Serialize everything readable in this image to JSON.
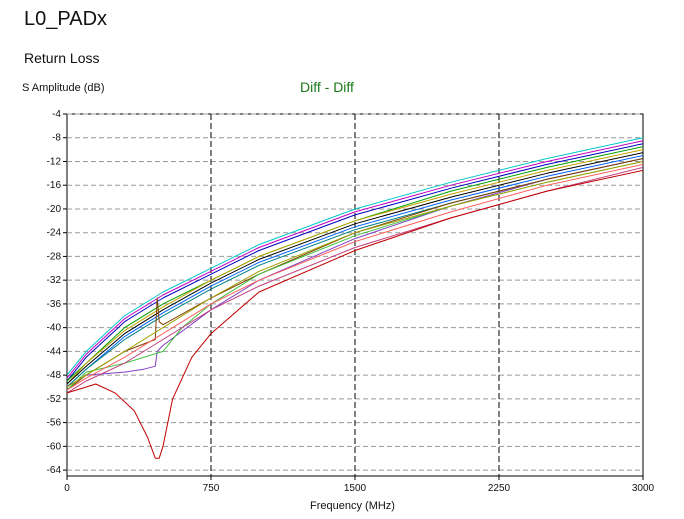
{
  "header": {
    "page_title": "L0_PADx",
    "section_title": "Return Loss"
  },
  "chart_data": {
    "type": "line",
    "title": "Diff - Diff",
    "xlabel": "Frequency (MHz)",
    "ylabel": "S Amplitude (dB)",
    "xlim": [
      0,
      3000
    ],
    "ylim": [
      -65,
      -4
    ],
    "x_ticks": [
      0,
      750,
      1500,
      2250,
      3000
    ],
    "y_ticks": [
      -4,
      -8,
      -12,
      -16,
      -20,
      -24,
      -28,
      -32,
      -36,
      -40,
      -44,
      -48,
      -52,
      -56,
      -60,
      -64
    ],
    "grid": true,
    "series": [
      {
        "color": "#00c8c8",
        "x": [
          0,
          100,
          300,
          500,
          750,
          1000,
          1500,
          2000,
          2500,
          3000
        ],
        "y": [
          -48,
          -44,
          -38,
          -34,
          -30,
          -26,
          -20,
          -15.5,
          -11.5,
          -8
        ]
      },
      {
        "color": "#c000c0",
        "x": [
          0,
          100,
          300,
          500,
          750,
          1000,
          1500,
          2000,
          2500,
          3000
        ],
        "y": [
          -48.5,
          -44.5,
          -38.5,
          -34.5,
          -30.5,
          -26.5,
          -20.5,
          -16,
          -12,
          -8.5
        ]
      },
      {
        "color": "#0000c0",
        "x": [
          0,
          100,
          300,
          500,
          750,
          1000,
          1500,
          2000,
          2500,
          3000
        ],
        "y": [
          -49,
          -45,
          -39,
          -35,
          -31,
          -27,
          -21,
          -16.5,
          -12.5,
          -9
        ]
      },
      {
        "color": "#00a000",
        "x": [
          0,
          100,
          300,
          500,
          750,
          1000,
          1500,
          2000,
          2500,
          3000
        ],
        "y": [
          -49,
          -46,
          -40,
          -36,
          -32,
          -28,
          -22,
          -17,
          -13,
          -9.5
        ]
      },
      {
        "color": "#c0a000",
        "x": [
          0,
          100,
          300,
          500,
          750,
          1000,
          1500,
          2000,
          2500,
          3000
        ],
        "y": [
          -49.5,
          -46,
          -40.5,
          -36.5,
          -32,
          -28,
          -22,
          -17.5,
          -13.5,
          -10
        ]
      },
      {
        "color": "#000000",
        "x": [
          0,
          100,
          300,
          500,
          750,
          1000,
          1500,
          2000,
          2500,
          3000
        ],
        "y": [
          -49.5,
          -46.5,
          -41,
          -37,
          -32.5,
          -28.5,
          -22.5,
          -18,
          -14,
          -10.5
        ]
      },
      {
        "color": "#0060ff",
        "x": [
          0,
          100,
          300,
          500,
          750,
          1000,
          1500,
          2000,
          2500,
          3000
        ],
        "y": [
          -50,
          -47,
          -41.5,
          -37.5,
          -33,
          -29,
          -23,
          -18.5,
          -14.5,
          -11
        ]
      },
      {
        "color": "#008080",
        "x": [
          0,
          100,
          300,
          500,
          750,
          1000,
          1500,
          2000,
          2500,
          3000
        ],
        "y": [
          -50,
          -47,
          -42,
          -38,
          -33.5,
          -29.5,
          -23.5,
          -19,
          -15,
          -11.5
        ]
      },
      {
        "color": "#8040c0",
        "x": [
          0,
          100,
          300,
          400,
          460,
          470,
          500,
          750,
          1000,
          1500,
          2000,
          2500,
          3000
        ],
        "y": [
          -50,
          -48,
          -47.5,
          -47,
          -46.5,
          -44,
          -43,
          -37,
          -32,
          -25,
          -19.5,
          -15,
          -11.5
        ]
      },
      {
        "color": "#804000",
        "x": [
          0,
          100,
          300,
          460,
          470,
          480,
          500,
          750,
          1000,
          1500,
          2000,
          2500,
          3000
        ],
        "y": [
          -50.5,
          -48,
          -44,
          -42,
          -35,
          -39,
          -39.5,
          -35,
          -31,
          -24,
          -19,
          -15,
          -11.5
        ]
      },
      {
        "color": "#40c040",
        "x": [
          0,
          100,
          300,
          500,
          600,
          750,
          1000,
          1500,
          2000,
          2500,
          3000
        ],
        "y": [
          -50.5,
          -47.5,
          -46,
          -44,
          -40,
          -36,
          -31,
          -24.5,
          -19.5,
          -15.5,
          -12
        ]
      },
      {
        "color": "#a0a000",
        "x": [
          0,
          100,
          300,
          500,
          750,
          1000,
          1500,
          2000,
          2500,
          3000
        ],
        "y": [
          -50,
          -48,
          -44,
          -40,
          -35,
          -30.5,
          -24,
          -19.5,
          -15.5,
          -12
        ]
      },
      {
        "color": "#ff6060",
        "x": [
          0,
          100,
          300,
          500,
          750,
          1000,
          1500,
          2000,
          2500,
          3000
        ],
        "y": [
          -50.5,
          -48.5,
          -45,
          -41,
          -36,
          -32,
          -25.5,
          -20.5,
          -16,
          -12.5
        ]
      },
      {
        "color": "#c04080",
        "x": [
          0,
          100,
          300,
          500,
          750,
          1000,
          1500,
          2000,
          2500,
          3000
        ],
        "y": [
          -51,
          -49,
          -46,
          -42,
          -37,
          -33,
          -26.5,
          -21.5,
          -17,
          -13
        ]
      },
      {
        "color": "#c00000",
        "x": [
          0,
          50,
          150,
          250,
          350,
          420,
          460,
          480,
          500,
          550,
          650,
          750,
          1000,
          1500,
          2000,
          2500,
          3000
        ],
        "y": [
          -51,
          -50.5,
          -49.5,
          -51,
          -54,
          -58.5,
          -62,
          -62,
          -60,
          -52,
          -45,
          -41,
          -34,
          -27,
          -21.5,
          -17,
          -13.5
        ]
      }
    ]
  }
}
